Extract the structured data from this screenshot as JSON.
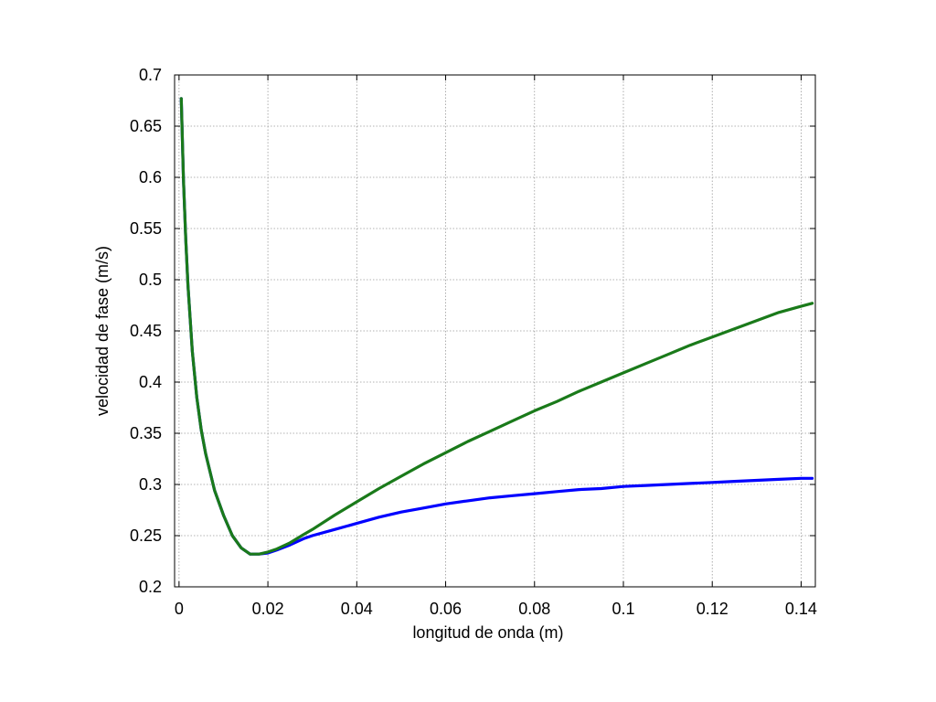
{
  "chart_data": {
    "type": "line",
    "title": "",
    "xlabel": "longitud de onda (m)",
    "ylabel": "velocidad de fase (m/s)",
    "xlim": [
      -0.001,
      0.1432
    ],
    "ylim": [
      0.2,
      0.7
    ],
    "xticks": [
      0,
      0.02,
      0.04,
      0.06,
      0.08,
      0.1,
      0.12,
      0.14
    ],
    "xtick_labels": [
      "0",
      "0.02",
      "0.04",
      "0.06",
      "0.08",
      "0.1",
      "0.12",
      "0.14"
    ],
    "yticks": [
      0.2,
      0.25,
      0.3,
      0.35,
      0.4,
      0.45,
      0.5,
      0.55,
      0.6,
      0.65,
      0.7
    ],
    "ytick_labels": [
      "0.2",
      "0.25",
      "0.3",
      "0.35",
      "0.4",
      "0.45",
      "0.5",
      "0.55",
      "0.6",
      "0.65",
      "0.7"
    ],
    "grid": true,
    "legend": "none",
    "series": [
      {
        "color": "#0000ff",
        "x": [
          0.0005,
          0.001,
          0.0015,
          0.002,
          0.003,
          0.004,
          0.005,
          0.006,
          0.008,
          0.01,
          0.012,
          0.014,
          0.016,
          0.017,
          0.018,
          0.02,
          0.022,
          0.025,
          0.028,
          0.03,
          0.035,
          0.04,
          0.045,
          0.05,
          0.055,
          0.06,
          0.065,
          0.07,
          0.075,
          0.08,
          0.085,
          0.09,
          0.095,
          0.1,
          0.105,
          0.11,
          0.115,
          0.12,
          0.125,
          0.13,
          0.135,
          0.14,
          0.1425
        ],
        "y": [
          0.677,
          0.598,
          0.54,
          0.495,
          0.43,
          0.385,
          0.353,
          0.33,
          0.294,
          0.27,
          0.25,
          0.238,
          0.232,
          0.232,
          0.232,
          0.233,
          0.236,
          0.241,
          0.247,
          0.25,
          0.256,
          0.262,
          0.268,
          0.273,
          0.277,
          0.281,
          0.284,
          0.287,
          0.289,
          0.291,
          0.293,
          0.295,
          0.296,
          0.298,
          0.299,
          0.3,
          0.301,
          0.302,
          0.303,
          0.304,
          0.305,
          0.306,
          0.306
        ]
      },
      {
        "color": "#1a7a1a",
        "x": [
          0.0005,
          0.001,
          0.0015,
          0.002,
          0.003,
          0.004,
          0.005,
          0.006,
          0.008,
          0.01,
          0.012,
          0.014,
          0.016,
          0.017,
          0.018,
          0.02,
          0.022,
          0.025,
          0.028,
          0.03,
          0.035,
          0.04,
          0.045,
          0.05,
          0.055,
          0.06,
          0.065,
          0.07,
          0.075,
          0.08,
          0.085,
          0.09,
          0.095,
          0.1,
          0.105,
          0.11,
          0.115,
          0.12,
          0.125,
          0.13,
          0.135,
          0.14,
          0.1425
        ],
        "y": [
          0.677,
          0.598,
          0.54,
          0.495,
          0.43,
          0.385,
          0.353,
          0.33,
          0.294,
          0.27,
          0.25,
          0.238,
          0.232,
          0.232,
          0.232,
          0.234,
          0.237,
          0.243,
          0.251,
          0.256,
          0.27,
          0.283,
          0.296,
          0.308,
          0.32,
          0.331,
          0.342,
          0.352,
          0.362,
          0.372,
          0.381,
          0.391,
          0.4,
          0.409,
          0.418,
          0.427,
          0.436,
          0.444,
          0.452,
          0.46,
          0.468,
          0.474,
          0.477
        ]
      }
    ]
  }
}
